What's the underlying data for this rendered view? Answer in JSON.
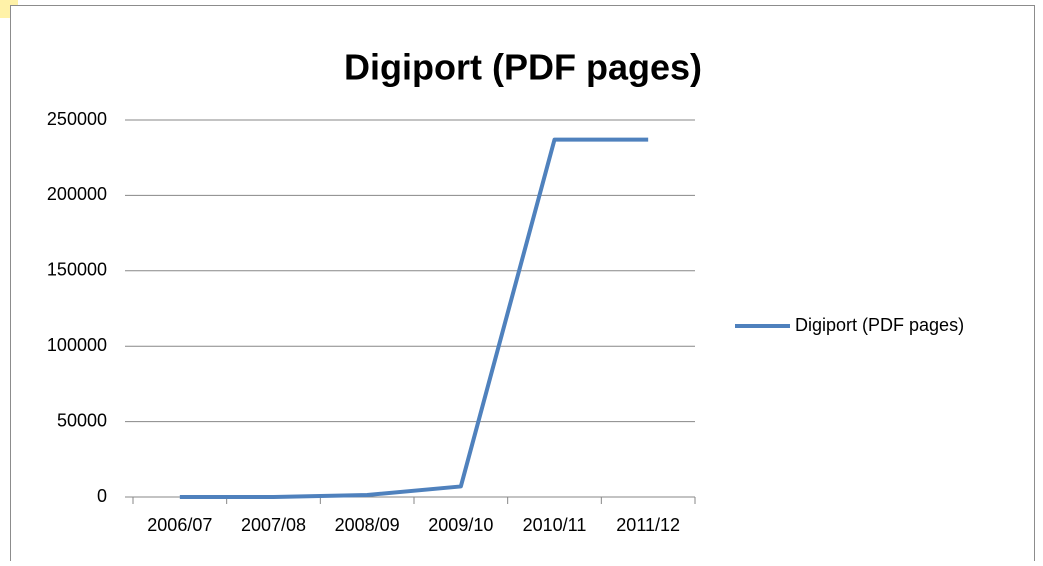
{
  "chart_data": {
    "type": "line",
    "title": "Digiport (PDF pages)",
    "categories": [
      "2006/07",
      "2007/08",
      "2008/09",
      "2009/10",
      "2010/11",
      "2011/12"
    ],
    "series": [
      {
        "name": "Digiport (PDF pages)",
        "color": "#4f81bd",
        "values": [
          0,
          0,
          1300,
          7000,
          237000,
          237000
        ]
      }
    ],
    "ylim": [
      0,
      250000
    ],
    "yticks": [
      0,
      50000,
      100000,
      150000,
      200000,
      250000
    ],
    "grid": true,
    "legend": "right"
  }
}
